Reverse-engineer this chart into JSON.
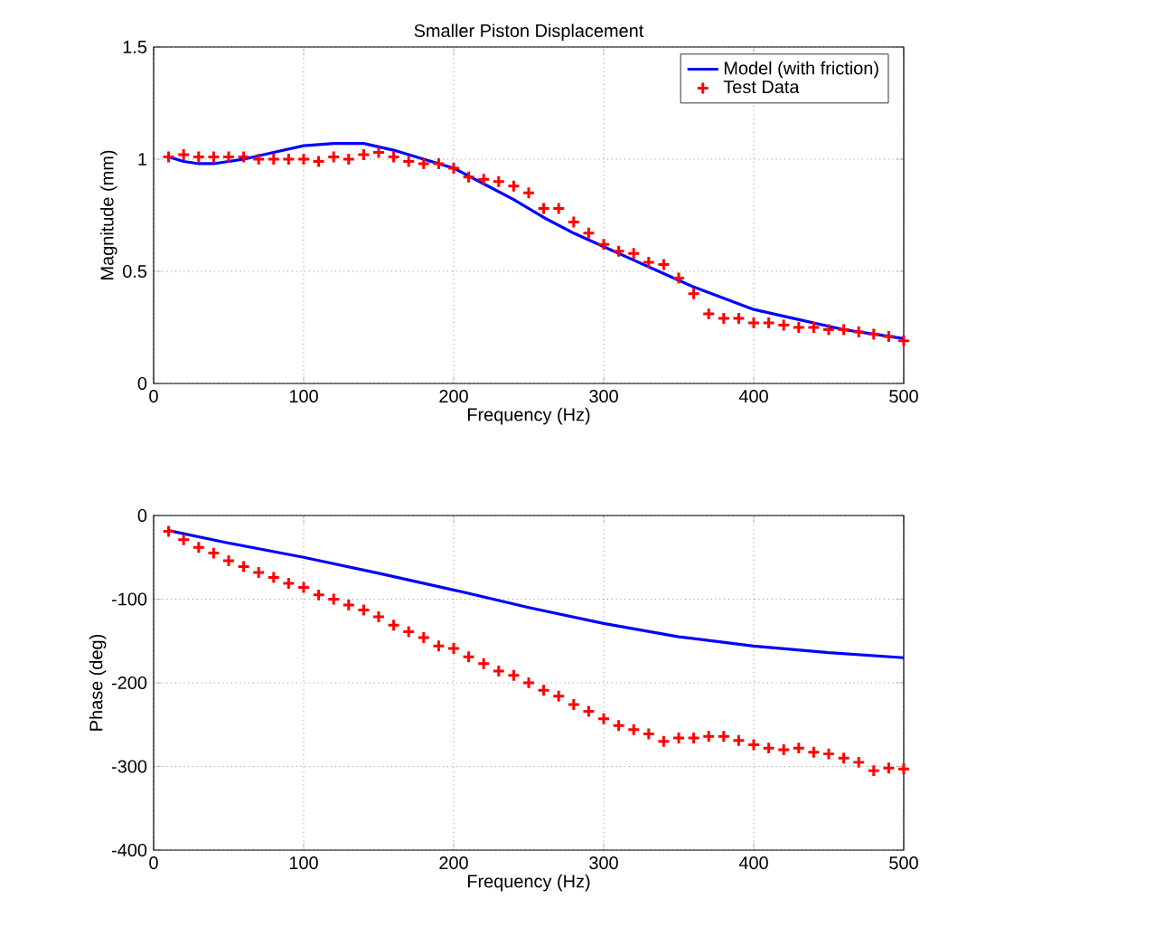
{
  "chart_data": [
    {
      "type": "line",
      "title": "Smaller Piston Displacement",
      "xlabel": "Frequency (Hz)",
      "ylabel": "Magnitude (mm)",
      "xlim": [
        0,
        500
      ],
      "xticks": [
        0,
        100,
        200,
        300,
        400,
        500
      ],
      "ylim": [
        0,
        1.5
      ],
      "yticks": [
        0,
        0.5,
        1,
        1.5
      ],
      "grid": true,
      "legend": "top right",
      "series": [
        {
          "name": "Model (with friction)",
          "line_style": "solid",
          "color": "#0000ff",
          "x": [
            10,
            20,
            30,
            40,
            50,
            60,
            80,
            100,
            120,
            140,
            160,
            180,
            200,
            220,
            240,
            260,
            280,
            300,
            320,
            340,
            360,
            380,
            400,
            420,
            440,
            460,
            480,
            500
          ],
          "values": [
            1.01,
            0.99,
            0.98,
            0.98,
            0.99,
            1.0,
            1.03,
            1.06,
            1.07,
            1.07,
            1.04,
            1.0,
            0.96,
            0.89,
            0.82,
            0.74,
            0.67,
            0.61,
            0.55,
            0.49,
            0.43,
            0.38,
            0.33,
            0.3,
            0.27,
            0.24,
            0.22,
            0.2
          ]
        },
        {
          "name": "Test Data",
          "type": "scatter",
          "marker": "cross",
          "color": "#ff0000",
          "x": [
            10,
            20,
            30,
            40,
            50,
            60,
            70,
            80,
            90,
            100,
            110,
            120,
            130,
            140,
            150,
            160,
            170,
            180,
            190,
            200,
            210,
            220,
            230,
            240,
            250,
            260,
            270,
            280,
            290,
            300,
            310,
            320,
            330,
            340,
            350,
            360,
            370,
            380,
            390,
            400,
            410,
            420,
            430,
            440,
            450,
            460,
            470,
            480,
            490,
            500
          ],
          "values": [
            1.01,
            1.02,
            1.01,
            1.01,
            1.01,
            1.01,
            1.0,
            1.0,
            1.0,
            1.0,
            0.99,
            1.01,
            1.0,
            1.02,
            1.03,
            1.01,
            0.99,
            0.98,
            0.98,
            0.96,
            0.92,
            0.91,
            0.9,
            0.88,
            0.85,
            0.78,
            0.78,
            0.72,
            0.67,
            0.62,
            0.59,
            0.58,
            0.54,
            0.53,
            0.47,
            0.4,
            0.31,
            0.29,
            0.29,
            0.27,
            0.27,
            0.26,
            0.25,
            0.25,
            0.24,
            0.24,
            0.23,
            0.22,
            0.21,
            0.19
          ]
        }
      ]
    },
    {
      "type": "line",
      "xlabel": "Frequency (Hz)",
      "ylabel": "Phase (deg)",
      "xlim": [
        0,
        500
      ],
      "xticks": [
        0,
        100,
        200,
        300,
        400,
        500
      ],
      "ylim": [
        -400,
        0
      ],
      "yticks": [
        -400,
        -300,
        -200,
        -100,
        0
      ],
      "grid": true,
      "series": [
        {
          "line_style": "solid",
          "color": "#0000ff",
          "x": [
            10,
            50,
            100,
            150,
            200,
            250,
            300,
            350,
            400,
            450,
            500
          ],
          "values": [
            -18,
            -33,
            -50,
            -69,
            -89,
            -110,
            -129,
            -145,
            -156,
            -164,
            -170
          ]
        },
        {
          "type": "scatter",
          "marker": "cross",
          "color": "#ff0000",
          "x": [
            10,
            20,
            30,
            40,
            50,
            60,
            70,
            80,
            90,
            100,
            110,
            120,
            130,
            140,
            150,
            160,
            170,
            180,
            190,
            200,
            210,
            220,
            230,
            240,
            250,
            260,
            270,
            280,
            290,
            300,
            310,
            320,
            330,
            340,
            350,
            360,
            370,
            380,
            390,
            400,
            410,
            420,
            430,
            440,
            450,
            460,
            470,
            480,
            490,
            500
          ],
          "values": [
            -19,
            -29,
            -38,
            -45,
            -54,
            -61,
            -68,
            -74,
            -81,
            -86,
            -95,
            -100,
            -107,
            -113,
            -121,
            -131,
            -139,
            -146,
            -156,
            -159,
            -169,
            -177,
            -186,
            -191,
            -200,
            -209,
            -216,
            -226,
            -234,
            -243,
            -251,
            -256,
            -261,
            -270,
            -266,
            -266,
            -264,
            -264,
            -269,
            -274,
            -278,
            -280,
            -278,
            -283,
            -285,
            -290,
            -295,
            -305,
            -302,
            -303
          ]
        }
      ]
    }
  ]
}
